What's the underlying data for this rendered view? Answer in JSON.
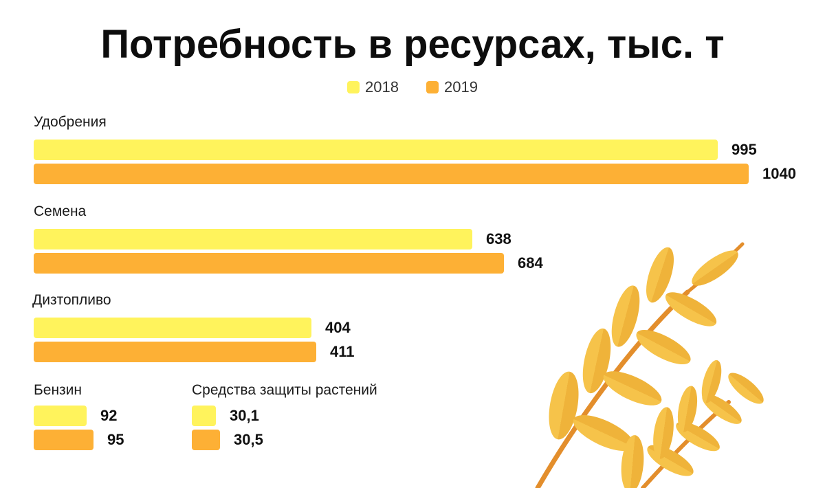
{
  "title": "Потребность в ресурсах, тыс. т",
  "colors": {
    "y2018": "#FFF35C",
    "y2019": "#FDB035"
  },
  "legend": [
    {
      "label": "2018",
      "color": "#FFF35C"
    },
    {
      "label": "2019",
      "color": "#FDB035"
    }
  ],
  "chart_data": {
    "type": "bar",
    "orientation": "horizontal",
    "title": "Потребность в ресурсах, тыс. т",
    "categories": [
      "Удобрения",
      "Семена",
      "Дизтопливо",
      "Бензин",
      "Средства защиты растений"
    ],
    "series": [
      {
        "name": "2018",
        "values": [
          995,
          638,
          404,
          92,
          30.1
        ],
        "labels": [
          "995",
          "638",
          "404",
          "92",
          "30,1"
        ]
      },
      {
        "name": "2019",
        "values": [
          1040,
          684,
          411,
          95,
          30.5
        ],
        "labels": [
          "1040",
          "684",
          "411",
          "95",
          "30,5"
        ]
      }
    ],
    "legend_position": "top-center",
    "grid": false
  }
}
